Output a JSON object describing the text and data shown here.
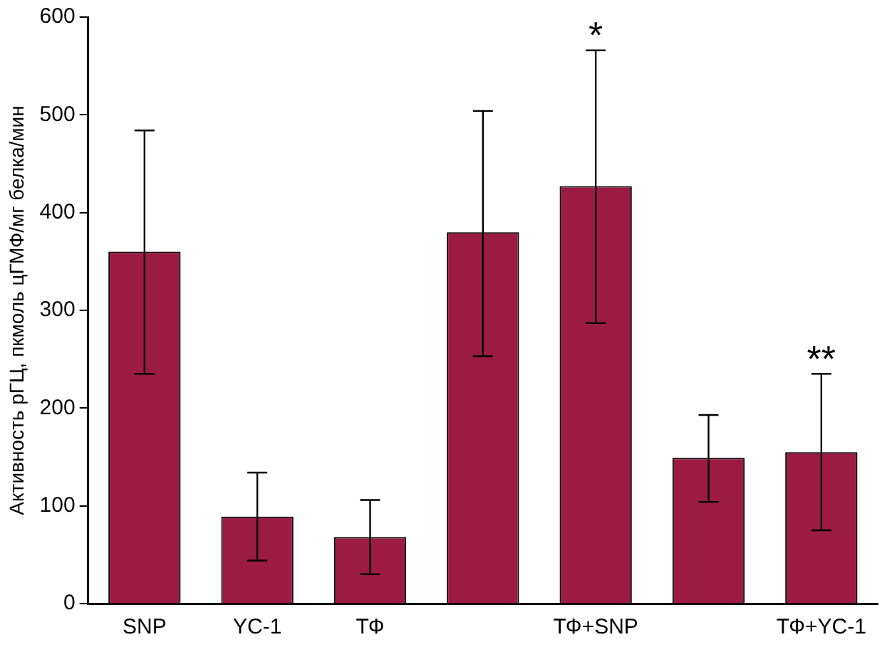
{
  "chart_data": {
    "type": "bar",
    "ylabel": "Активность рГЦ, пкмоль цГМФ/мг белка/мин",
    "categories": [
      "SNP",
      "YC-1",
      "ТФ",
      null,
      "ТФ+SNP",
      null,
      "ТФ+YC-1"
    ],
    "values": [
      360,
      89,
      68,
      380,
      427,
      149,
      155
    ],
    "errors": [
      [
        235,
        484
      ],
      [
        44,
        134
      ],
      [
        30,
        106
      ],
      [
        253,
        504
      ],
      [
        287,
        566
      ],
      [
        104,
        193
      ],
      [
        75,
        235
      ]
    ],
    "color": "#9b1b45",
    "ylim": [
      0,
      600
    ],
    "yticks": [
      0,
      100,
      200,
      300,
      400,
      500,
      600
    ],
    "grid": false,
    "legend": false,
    "annotations": [
      {
        "text": "*",
        "x": "ТФ+SNP",
        "y": 566
      },
      {
        "text": "**",
        "x": "ТФ+YC-1",
        "y": 235
      }
    ]
  }
}
